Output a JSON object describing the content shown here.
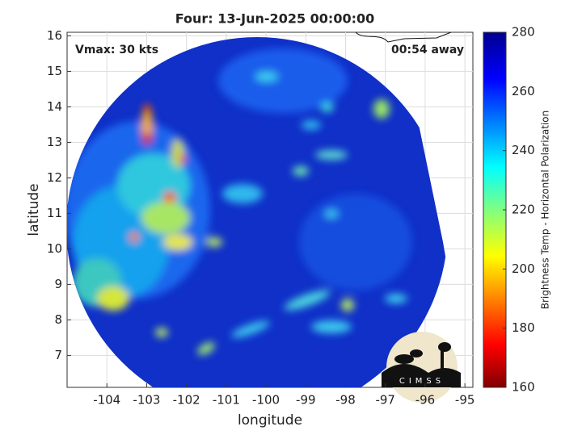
{
  "chart_data": {
    "type": "image",
    "title": "Four: 13-Jun-2025 00:00:00",
    "annotations": [
      "Vmax: 30 kts",
      "00:54 away"
    ],
    "xlabel": "longitude",
    "ylabel": "latitude",
    "xlim": [
      -105,
      -94.8
    ],
    "ylim": [
      6.1,
      16.1
    ],
    "xticks": [
      -104,
      -103,
      -102,
      -101,
      -100,
      -99,
      -98,
      -97,
      -96,
      -95
    ],
    "yticks": [
      7,
      8,
      9,
      10,
      11,
      12,
      13,
      14,
      15,
      16
    ],
    "grid": true,
    "colorbar": {
      "label": "Brightness Temp - Horizontal Polarization",
      "lim": [
        160,
        280
      ],
      "ticks": [
        160,
        180,
        200,
        220,
        240,
        260,
        280
      ]
    },
    "logo": "CIMSS"
  }
}
